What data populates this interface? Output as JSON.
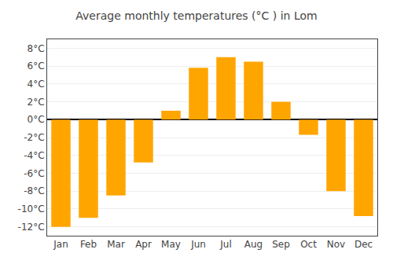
{
  "chart_data": {
    "type": "bar",
    "title": "Average monthly temperatures (°C ) in Lom",
    "categories": [
      "Jan",
      "Feb",
      "Mar",
      "Apr",
      "May",
      "Jun",
      "Jul",
      "Aug",
      "Sep",
      "Oct",
      "Nov",
      "Dec"
    ],
    "values": [
      -12,
      -11,
      -8.5,
      -4.8,
      1,
      5.8,
      7,
      6.5,
      2,
      -1.7,
      -8,
      -10.8
    ],
    "color": "#FFA500",
    "ylim": [
      -13,
      9
    ],
    "yticks": [
      {
        "value": -12,
        "label": "-12°C"
      },
      {
        "value": -10,
        "label": "-10°C"
      },
      {
        "value": -8,
        "label": "-8°C"
      },
      {
        "value": -6,
        "label": "-6°C"
      },
      {
        "value": -4,
        "label": "-4°C"
      },
      {
        "value": -2,
        "label": "-2°C"
      },
      {
        "value": 0,
        "label": "0°C"
      },
      {
        "value": 2,
        "label": "2°C"
      },
      {
        "value": 4,
        "label": "4°C"
      },
      {
        "value": 6,
        "label": "6°C"
      },
      {
        "value": 8,
        "label": "8°C"
      }
    ],
    "grid": true
  }
}
